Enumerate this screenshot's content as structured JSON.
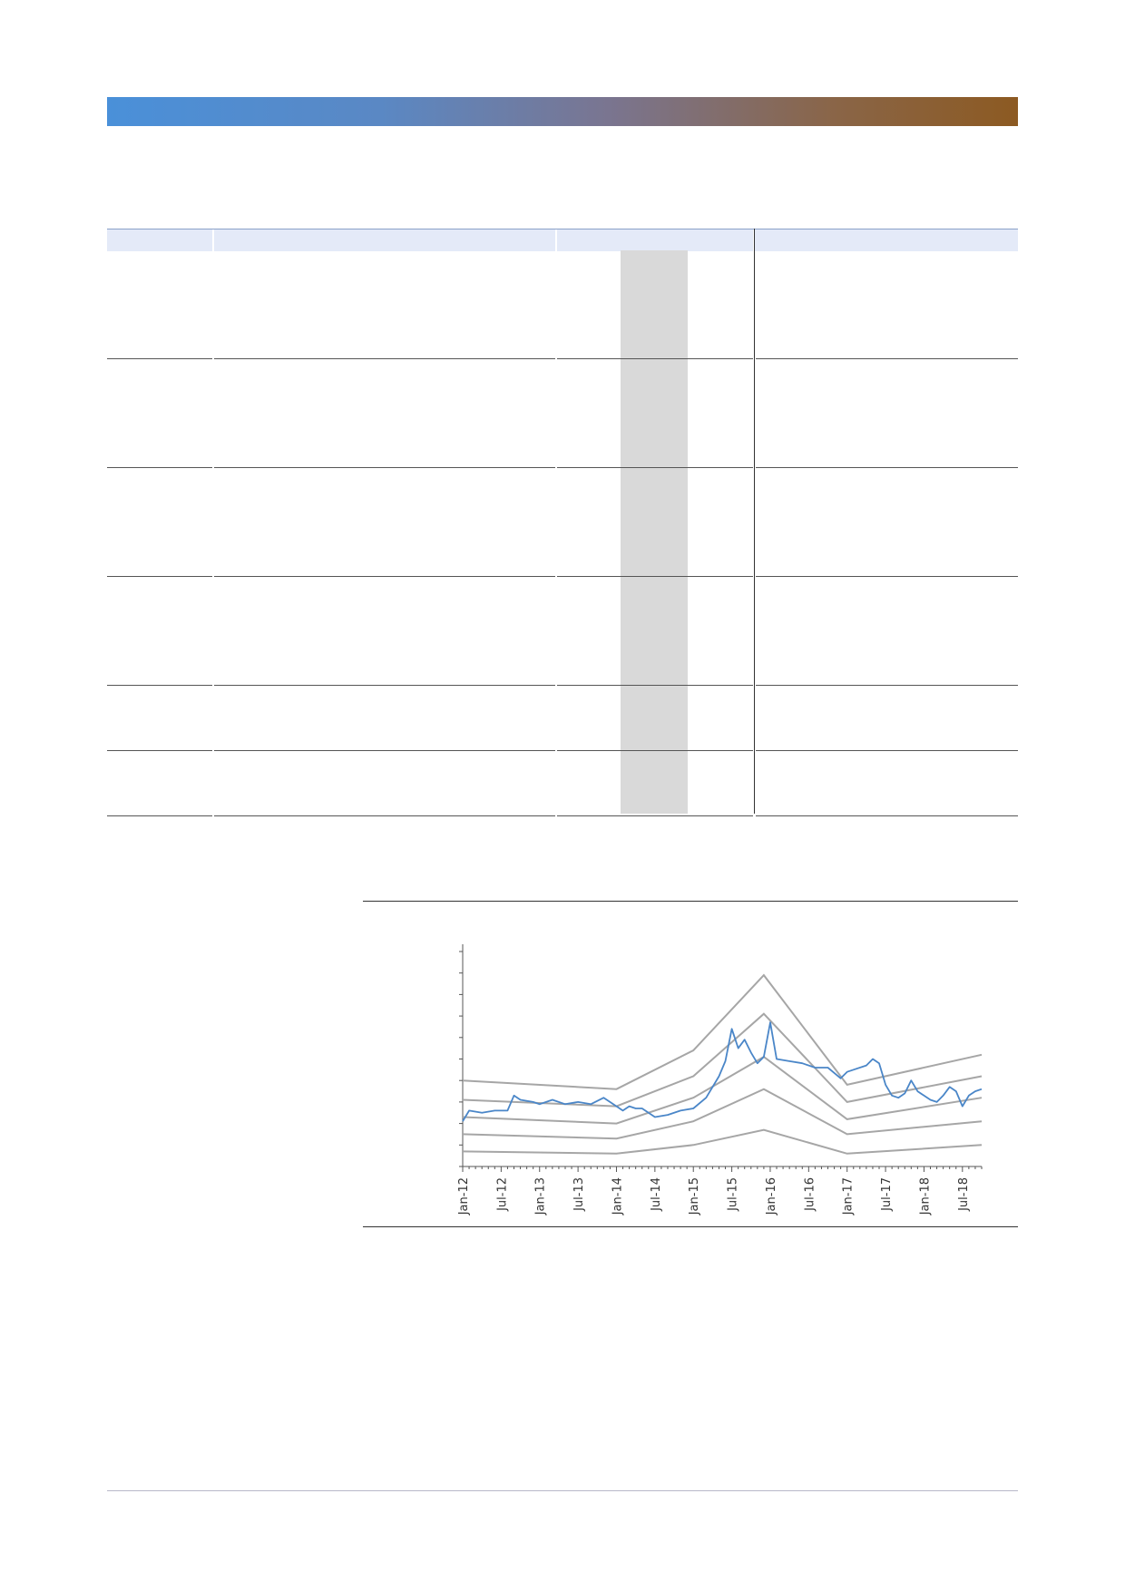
{
  "colors": {
    "banner_start": "#4a90d9",
    "banner_end": "#8c5a22",
    "table_header_bg": "#e4eaf8",
    "table_highlight_col": "#d9d9d9",
    "series_main": "#4a86c8",
    "series_bands": "#a6a6a6"
  },
  "table": {
    "rows": [
      {
        "height": 120
      },
      {
        "height": 120
      },
      {
        "height": 120
      },
      {
        "height": 120
      },
      {
        "height": 72
      },
      {
        "height": 72
      }
    ]
  },
  "chart_data": {
    "type": "line",
    "title": "",
    "xlabel": "",
    "ylabel": "",
    "x_tick_labels": [
      "Jan-12",
      "Jul-12",
      "Jan-13",
      "Jul-13",
      "Jan-14",
      "Jul-14",
      "Jan-15",
      "Jul-15",
      "Jan-16",
      "Jul-16",
      "Jan-17",
      "Jul-17",
      "Jan-18",
      "Jul-18"
    ],
    "x_range": [
      "2012-01",
      "2018-10"
    ],
    "y_range": [
      0,
      10
    ],
    "y_tick_count": 10,
    "grid": false,
    "bands": [
      {
        "x": [
          "2012-01",
          "2014-01",
          "2015-01",
          "2015-12",
          "2017-01",
          "2018-10"
        ],
        "values": [
          4.0,
          3.6,
          5.4,
          8.9,
          3.8,
          5.2
        ]
      },
      {
        "x": [
          "2012-01",
          "2014-01",
          "2015-01",
          "2015-12",
          "2017-01",
          "2018-10"
        ],
        "values": [
          3.1,
          2.8,
          4.2,
          7.1,
          3.0,
          4.2
        ]
      },
      {
        "x": [
          "2012-01",
          "2014-01",
          "2015-01",
          "2015-12",
          "2017-01",
          "2018-10"
        ],
        "values": [
          2.3,
          2.0,
          3.2,
          5.1,
          2.2,
          3.2
        ]
      },
      {
        "x": [
          "2012-01",
          "2014-01",
          "2015-01",
          "2015-12",
          "2017-01",
          "2018-10"
        ],
        "values": [
          1.5,
          1.3,
          2.1,
          3.6,
          1.5,
          2.1
        ]
      },
      {
        "x": [
          "2012-01",
          "2014-01",
          "2015-01",
          "2015-12",
          "2017-01",
          "2018-10"
        ],
        "values": [
          0.7,
          0.6,
          1.0,
          1.7,
          0.6,
          1.0
        ]
      }
    ],
    "series": [
      {
        "x": [
          "2012-01",
          "2012-02",
          "2012-04",
          "2012-06",
          "2012-08",
          "2012-09",
          "2012-10",
          "2012-12",
          "2013-01",
          "2013-03",
          "2013-05",
          "2013-07",
          "2013-09",
          "2013-11",
          "2014-01",
          "2014-02",
          "2014-03",
          "2014-04",
          "2014-05",
          "2014-07",
          "2014-09",
          "2014-11",
          "2015-01",
          "2015-03",
          "2015-05",
          "2015-06",
          "2015-07",
          "2015-08",
          "2015-09",
          "2015-10",
          "2015-11",
          "2015-12",
          "2016-01",
          "2016-02",
          "2016-04",
          "2016-06",
          "2016-08",
          "2016-10",
          "2016-12",
          "2017-01",
          "2017-02",
          "2017-04",
          "2017-05",
          "2017-06",
          "2017-07",
          "2017-08",
          "2017-09",
          "2017-10",
          "2017-11",
          "2017-12",
          "2018-01",
          "2018-02",
          "2018-03",
          "2018-04",
          "2018-05",
          "2018-06",
          "2018-07",
          "2018-08",
          "2018-09",
          "2018-10"
        ],
        "values": [
          2.1,
          2.6,
          2.5,
          2.6,
          2.6,
          3.3,
          3.1,
          3.0,
          2.9,
          3.1,
          2.9,
          3.0,
          2.9,
          3.2,
          2.8,
          2.6,
          2.8,
          2.7,
          2.7,
          2.3,
          2.4,
          2.6,
          2.7,
          3.2,
          4.2,
          4.9,
          6.4,
          5.5,
          5.9,
          5.3,
          4.8,
          5.1,
          6.7,
          5.0,
          4.9,
          4.8,
          4.6,
          4.6,
          4.1,
          4.4,
          4.5,
          4.7,
          5.0,
          4.8,
          3.8,
          3.3,
          3.2,
          3.4,
          4.0,
          3.5,
          3.3,
          3.1,
          3.0,
          3.3,
          3.7,
          3.5,
          2.8,
          3.3,
          3.5,
          3.6
        ]
      }
    ]
  }
}
